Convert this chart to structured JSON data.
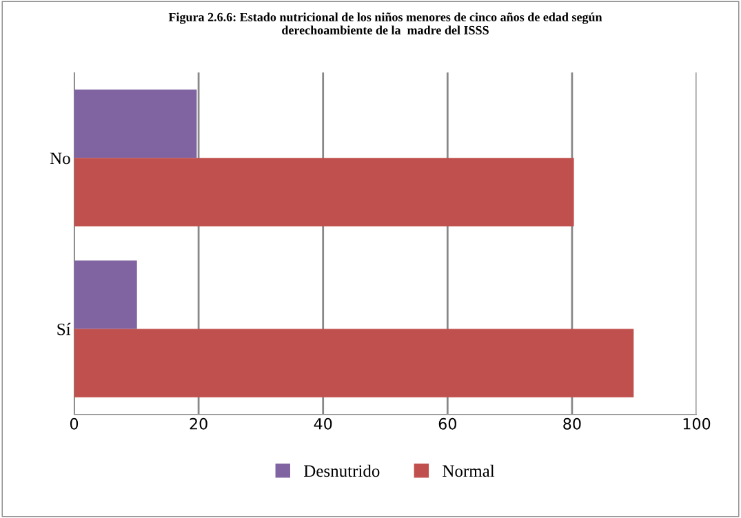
{
  "chart_data": {
    "type": "bar",
    "orientation": "horizontal",
    "title": "Figura 2.6.6: Estado nutricional de los niños menores de cinco años de edad según\nderechoambiente de la  madre del ISSS",
    "categories": [
      "No",
      "Sí"
    ],
    "series": [
      {
        "name": "Desnutrido",
        "color": "#8064a2",
        "values": [
          19.7,
          10.1
        ]
      },
      {
        "name": "Normal",
        "color": "#c0504d",
        "values": [
          80.3,
          89.9
        ]
      }
    ],
    "xlim": [
      0,
      100
    ],
    "xticks": [
      0,
      20,
      40,
      60,
      80,
      100
    ],
    "grid": "x",
    "legend": "bottom"
  }
}
